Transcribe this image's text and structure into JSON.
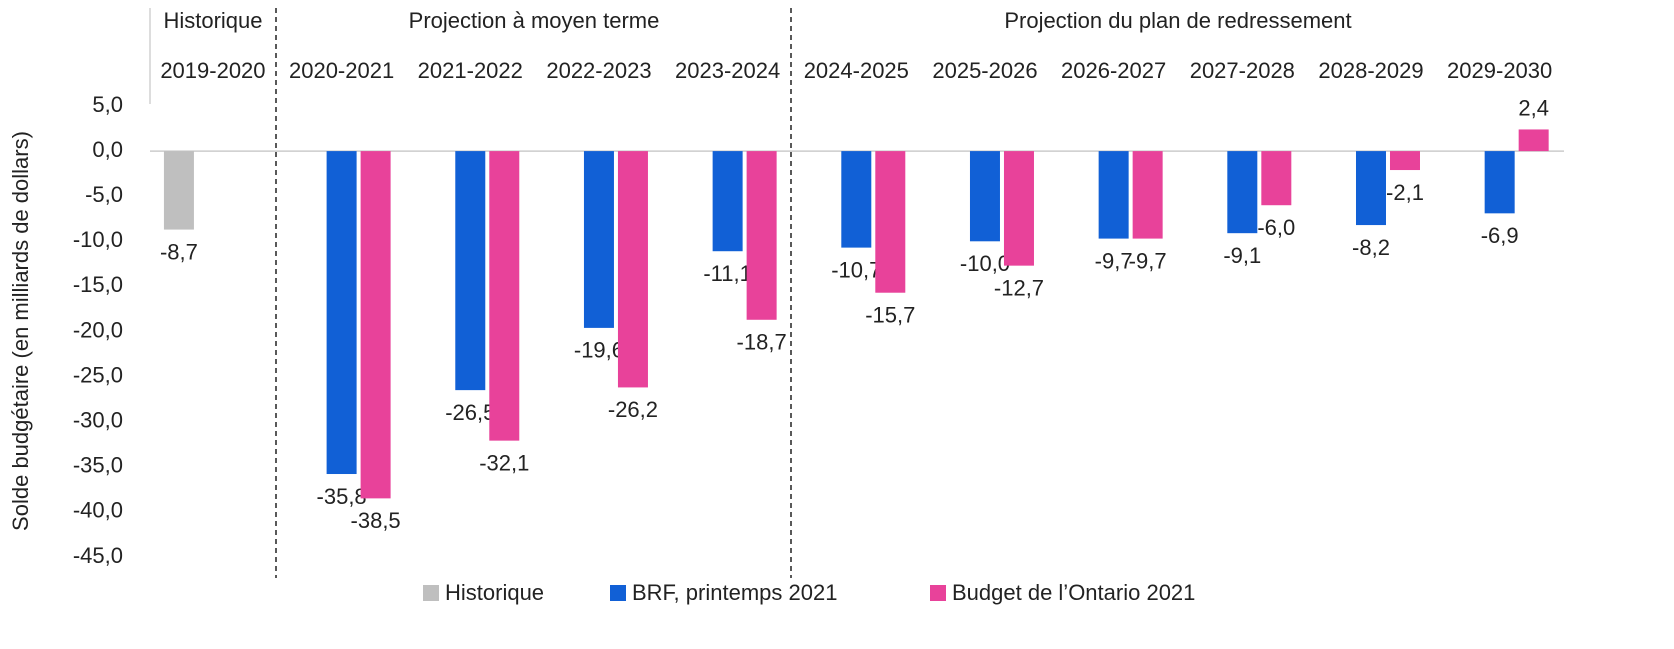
{
  "chart_data": {
    "type": "bar",
    "y_axis_label": "Solde budgétaire (en milliards de dollars)",
    "annotations": [
      "Historique",
      "Projection à moyen terme",
      "Projection du plan de redressement"
    ],
    "categories": [
      "2019-2020",
      "2020-2021",
      "2021-2022",
      "2022-2023",
      "2023-2024",
      "2024-2025",
      "2025-2026",
      "2026-2027",
      "2027-2028",
      "2028-2029",
      "2029-2030"
    ],
    "series": [
      {
        "name": "Historique",
        "color": "#bfbfbf",
        "values": [
          -8.7,
          null,
          null,
          null,
          null,
          null,
          null,
          null,
          null,
          null,
          null
        ],
        "value_labels": [
          "-8,7",
          null,
          null,
          null,
          null,
          null,
          null,
          null,
          null,
          null,
          null
        ]
      },
      {
        "name": "BRF, printemps 2021",
        "color": "#1160d6",
        "values": [
          null,
          -35.8,
          -26.5,
          -19.6,
          -11.1,
          -10.7,
          -10.0,
          -9.7,
          -9.1,
          -8.2,
          -6.9
        ],
        "value_labels": [
          null,
          "-35,8",
          "-26,5",
          "-19,6",
          "-11,1",
          "-10,7",
          "-10,0",
          "-9,7",
          "-9,1",
          "-8,2",
          "-6,9"
        ]
      },
      {
        "name": "Budget de l’Ontario 2021",
        "color": "#e8429a",
        "values": [
          null,
          -38.5,
          -32.1,
          -26.2,
          -18.7,
          -15.7,
          -12.7,
          -9.7,
          -6.0,
          -2.1,
          2.4
        ],
        "value_labels": [
          null,
          "-38,5",
          "-32,1",
          "-26,2",
          "-18,7",
          "-15,7",
          "-12,7",
          "-9,7",
          "-6,0",
          "-2,1",
          "2,4"
        ]
      }
    ],
    "ylim": [
      -45,
      5
    ],
    "yticks": [
      {
        "value": 5,
        "label": "5,0"
      },
      {
        "value": 0,
        "label": "0,0"
      },
      {
        "value": -5,
        "label": "-5,0"
      },
      {
        "value": -10,
        "label": "-10,0"
      },
      {
        "value": -15,
        "label": "-15,0"
      },
      {
        "value": -20,
        "label": "-20,0"
      },
      {
        "value": -25,
        "label": "-25,0"
      },
      {
        "value": -30,
        "label": "-30,0"
      },
      {
        "value": -35,
        "label": "-35,0"
      },
      {
        "value": -40,
        "label": "-40,0"
      },
      {
        "value": -45,
        "label": "-45,0"
      }
    ],
    "grid": false,
    "legend": "bottom"
  }
}
